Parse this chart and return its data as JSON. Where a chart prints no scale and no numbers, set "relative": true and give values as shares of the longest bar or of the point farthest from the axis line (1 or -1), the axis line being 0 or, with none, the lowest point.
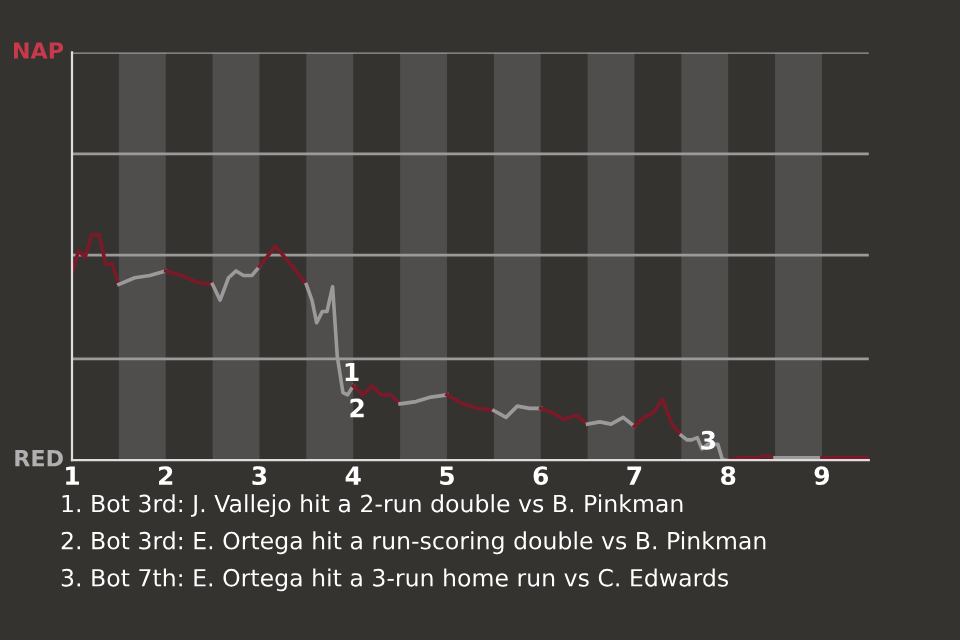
{
  "chart_data": {
    "type": "line",
    "relative": true,
    "legend": false,
    "xlim": [
      1,
      9.5
    ],
    "xticks": [
      1,
      2,
      3,
      4,
      5,
      6,
      7,
      8,
      9
    ],
    "bands": [
      {
        "axis": "x",
        "from": 1.5,
        "to": 2,
        "color": "#4f4e4c"
      },
      {
        "axis": "x",
        "from": 2.5,
        "to": 3,
        "color": "#4f4e4c"
      },
      {
        "axis": "x",
        "from": 3.5,
        "to": 4,
        "color": "#4f4e4c"
      },
      {
        "axis": "x",
        "from": 4.5,
        "to": 5,
        "color": "#4f4e4c"
      },
      {
        "axis": "x",
        "from": 5.5,
        "to": 6,
        "color": "#4f4e4c"
      },
      {
        "axis": "x",
        "from": 6.5,
        "to": 7,
        "color": "#4f4e4c"
      },
      {
        "axis": "x",
        "from": 7.5,
        "to": 8,
        "color": "#4f4e4c"
      },
      {
        "axis": "x",
        "from": 8.5,
        "to": 9,
        "color": "#4f4e4c"
      }
    ],
    "ref_lines": [
      {
        "axis": "y",
        "value": 0.45,
        "color": "#9a9a9a"
      },
      {
        "axis": "y",
        "value": 0.91,
        "color": "#9a9a9a"
      },
      {
        "axis": "y",
        "value": 1.36,
        "color": "#9a9a9a"
      },
      {
        "axis": "y",
        "value": 1.81,
        "color": "#9a9a9a"
      }
    ],
    "series": [
      {
        "color": "#7a1a28",
        "x": [
          1,
          1.07,
          1.14,
          1.21,
          1.29,
          1.36,
          1.43,
          1.5
        ],
        "values": [
          0.83,
          0.93,
          0.9,
          1,
          1,
          0.87,
          0.87,
          0.78
        ]
      },
      {
        "color": "#9a9a9a",
        "x": [
          1.5,
          1.67,
          1.83,
          2
        ],
        "values": [
          0.78,
          0.81,
          0.82,
          0.84
        ]
      },
      {
        "color": "#7a1a28",
        "x": [
          2,
          2.17,
          2.33,
          2.5
        ],
        "values": [
          0.84,
          0.82,
          0.79,
          0.78
        ]
      },
      {
        "color": "#9a9a9a",
        "x": [
          2.5,
          2.58,
          2.67,
          2.75,
          2.83,
          2.92,
          3
        ],
        "values": [
          0.78,
          0.71,
          0.81,
          0.84,
          0.82,
          0.82,
          0.86
        ]
      },
      {
        "color": "#7a1a28",
        "x": [
          3,
          3.17,
          3.33,
          3.5
        ],
        "values": [
          0.86,
          0.95,
          0.87,
          0.78
        ]
      },
      {
        "color": "#9a9a9a",
        "x": [
          3.5,
          3.56,
          3.61,
          3.67,
          3.72,
          3.78,
          3.83,
          3.89,
          3.94,
          4
        ],
        "values": [
          0.78,
          0.71,
          0.61,
          0.66,
          0.66,
          0.77,
          0.46,
          0.3,
          0.29,
          0.33
        ]
      },
      {
        "color": "#7a1a28",
        "x": [
          4,
          4.1,
          4.2,
          4.3,
          4.4,
          4.5
        ],
        "values": [
          0.33,
          0.29,
          0.33,
          0.29,
          0.29,
          0.25
        ]
      },
      {
        "color": "#9a9a9a",
        "x": [
          4.5,
          4.67,
          4.83,
          5
        ],
        "values": [
          0.25,
          0.26,
          0.28,
          0.29
        ]
      },
      {
        "color": "#7a1a28",
        "x": [
          5,
          5.17,
          5.33,
          5.5
        ],
        "values": [
          0.29,
          0.25,
          0.23,
          0.22
        ]
      },
      {
        "color": "#9a9a9a",
        "x": [
          5.5,
          5.63,
          5.75,
          5.88,
          6
        ],
        "values": [
          0.22,
          0.19,
          0.24,
          0.23,
          0.23
        ]
      },
      {
        "color": "#7a1a28",
        "x": [
          6,
          6.13,
          6.25,
          6.38,
          6.5
        ],
        "values": [
          0.23,
          0.21,
          0.18,
          0.2,
          0.16
        ]
      },
      {
        "color": "#9a9a9a",
        "x": [
          6.5,
          6.63,
          6.75,
          6.88,
          7
        ],
        "values": [
          0.16,
          0.17,
          0.16,
          0.19,
          0.15
        ]
      },
      {
        "color": "#7a1a28",
        "x": [
          7,
          7.1,
          7.2,
          7.3,
          7.4,
          7.5
        ],
        "values": [
          0.15,
          0.19,
          0.21,
          0.27,
          0.16,
          0.11
        ]
      },
      {
        "color": "#9a9a9a",
        "x": [
          7.5,
          7.56,
          7.61,
          7.67,
          7.72,
          7.78,
          7.83,
          7.89,
          7.94,
          8
        ],
        "values": [
          0.11,
          0.09,
          0.09,
          0.1,
          0.05,
          0.07,
          0.07,
          0.07,
          0,
          0
        ]
      },
      {
        "color": "#7a1a28",
        "x": [
          8,
          8.1,
          8.2,
          8.3,
          8.4,
          8.5
        ],
        "values": [
          0,
          0.01,
          0.01,
          0.01,
          0.02,
          0.01
        ]
      },
      {
        "color": "#9a9a9a",
        "x": [
          8.5,
          8.6,
          8.7,
          8.8,
          8.9,
          9
        ],
        "values": [
          0.01,
          0.01,
          0.01,
          0.01,
          0.01,
          0.01
        ]
      },
      {
        "color": "#7a1a28",
        "x": [
          9,
          9.17,
          9.33,
          9.5
        ],
        "values": [
          0.01,
          0.01,
          0.01,
          0.01
        ]
      }
    ],
    "annotations": [
      "NAP",
      "RED",
      {
        "text": "1",
        "x": 3.83,
        "y": 0.46
      },
      {
        "text": "2",
        "x": 3.89,
        "y": 0.3
      },
      {
        "text": "3",
        "x": 7.94,
        "y": 0
      },
      "1. Bot 3rd: J. Vallejo hit a 2-run double vs B. Pinkman",
      "2. Bot 3rd: E. Ortega hit a run-scoring double vs B. Pinkman",
      "3. Bot 7th: E. Ortega hit a 3-run home run vs C. Edwards"
    ]
  }
}
